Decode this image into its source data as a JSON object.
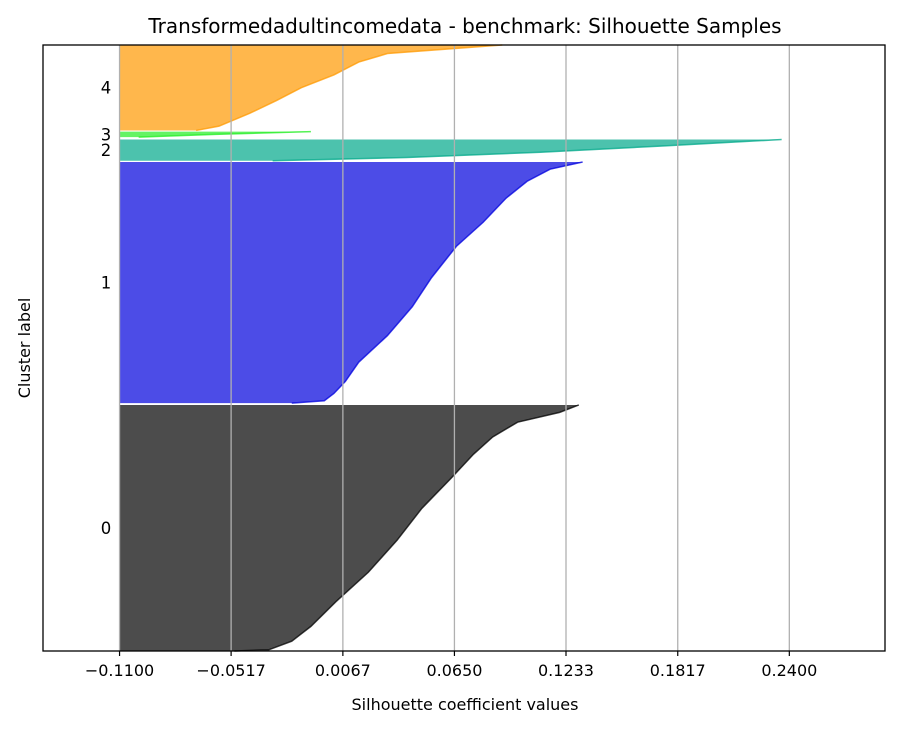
{
  "chart_data": {
    "type": "area",
    "title": "Transformedadultincomedata - benchmark: Silhouette Samples",
    "xlabel": "Silhouette coefficient values",
    "ylabel": "Cluster label",
    "xlim": [
      -0.15,
      0.29
    ],
    "xticks": [
      -0.11,
      -0.0517,
      0.0067,
      0.065,
      0.1233,
      0.1817,
      0.24
    ],
    "xtick_labels": [
      "−0.1100",
      "−0.0517",
      "0.0067",
      "0.0650",
      "0.1233",
      "0.1817",
      "0.2400"
    ],
    "grid": "vertical",
    "baseline": -0.11,
    "y_range": [
      0,
      100
    ],
    "clusters": [
      {
        "label": "0",
        "color": "#000000",
        "y_start": 0.0,
        "y_end": 40.6,
        "profile": [
          [
            0.0,
            0.13
          ],
          [
            0.03,
            0.12
          ],
          [
            0.07,
            0.098
          ],
          [
            0.13,
            0.085
          ],
          [
            0.2,
            0.075
          ],
          [
            0.3,
            0.063
          ],
          [
            0.42,
            0.048
          ],
          [
            0.55,
            0.035
          ],
          [
            0.68,
            0.02
          ],
          [
            0.8,
            0.003
          ],
          [
            0.9,
            -0.01
          ],
          [
            0.96,
            -0.02
          ],
          [
            0.995,
            -0.032
          ],
          [
            1.0,
            -0.05
          ]
        ]
      },
      {
        "label": "1",
        "color": "#0000dd",
        "y_start": 40.9,
        "y_end": 80.7,
        "profile": [
          [
            0.0,
            0.132
          ],
          [
            0.03,
            0.115
          ],
          [
            0.08,
            0.103
          ],
          [
            0.15,
            0.092
          ],
          [
            0.25,
            0.08
          ],
          [
            0.35,
            0.066
          ],
          [
            0.48,
            0.053
          ],
          [
            0.6,
            0.043
          ],
          [
            0.72,
            0.03
          ],
          [
            0.83,
            0.015
          ],
          [
            0.91,
            0.008
          ],
          [
            0.96,
            0.002
          ],
          [
            0.99,
            -0.003
          ],
          [
            1.0,
            -0.02
          ]
        ]
      },
      {
        "label": "2",
        "color": "#00a88a",
        "y_start": 80.9,
        "y_end": 84.4,
        "profile": [
          [
            0.0,
            0.236
          ],
          [
            0.3,
            0.175
          ],
          [
            0.6,
            0.11
          ],
          [
            0.85,
            0.04
          ],
          [
            1.0,
            -0.03
          ]
        ]
      },
      {
        "label": "3",
        "color": "#22ee22",
        "y_start": 84.8,
        "y_end": 85.7,
        "profile": [
          [
            0.0,
            -0.01
          ],
          [
            0.5,
            -0.06
          ],
          [
            1.0,
            -0.1
          ]
        ]
      },
      {
        "label": "4",
        "color": "#ff9900",
        "y_start": 85.9,
        "y_end": 100.0,
        "profile": [
          [
            0.0,
            0.09
          ],
          [
            0.1,
            0.03
          ],
          [
            0.2,
            0.015
          ],
          [
            0.35,
            0.002
          ],
          [
            0.5,
            -0.015
          ],
          [
            0.65,
            -0.028
          ],
          [
            0.8,
            -0.042
          ],
          [
            0.95,
            -0.058
          ],
          [
            1.0,
            -0.07
          ]
        ]
      }
    ]
  }
}
